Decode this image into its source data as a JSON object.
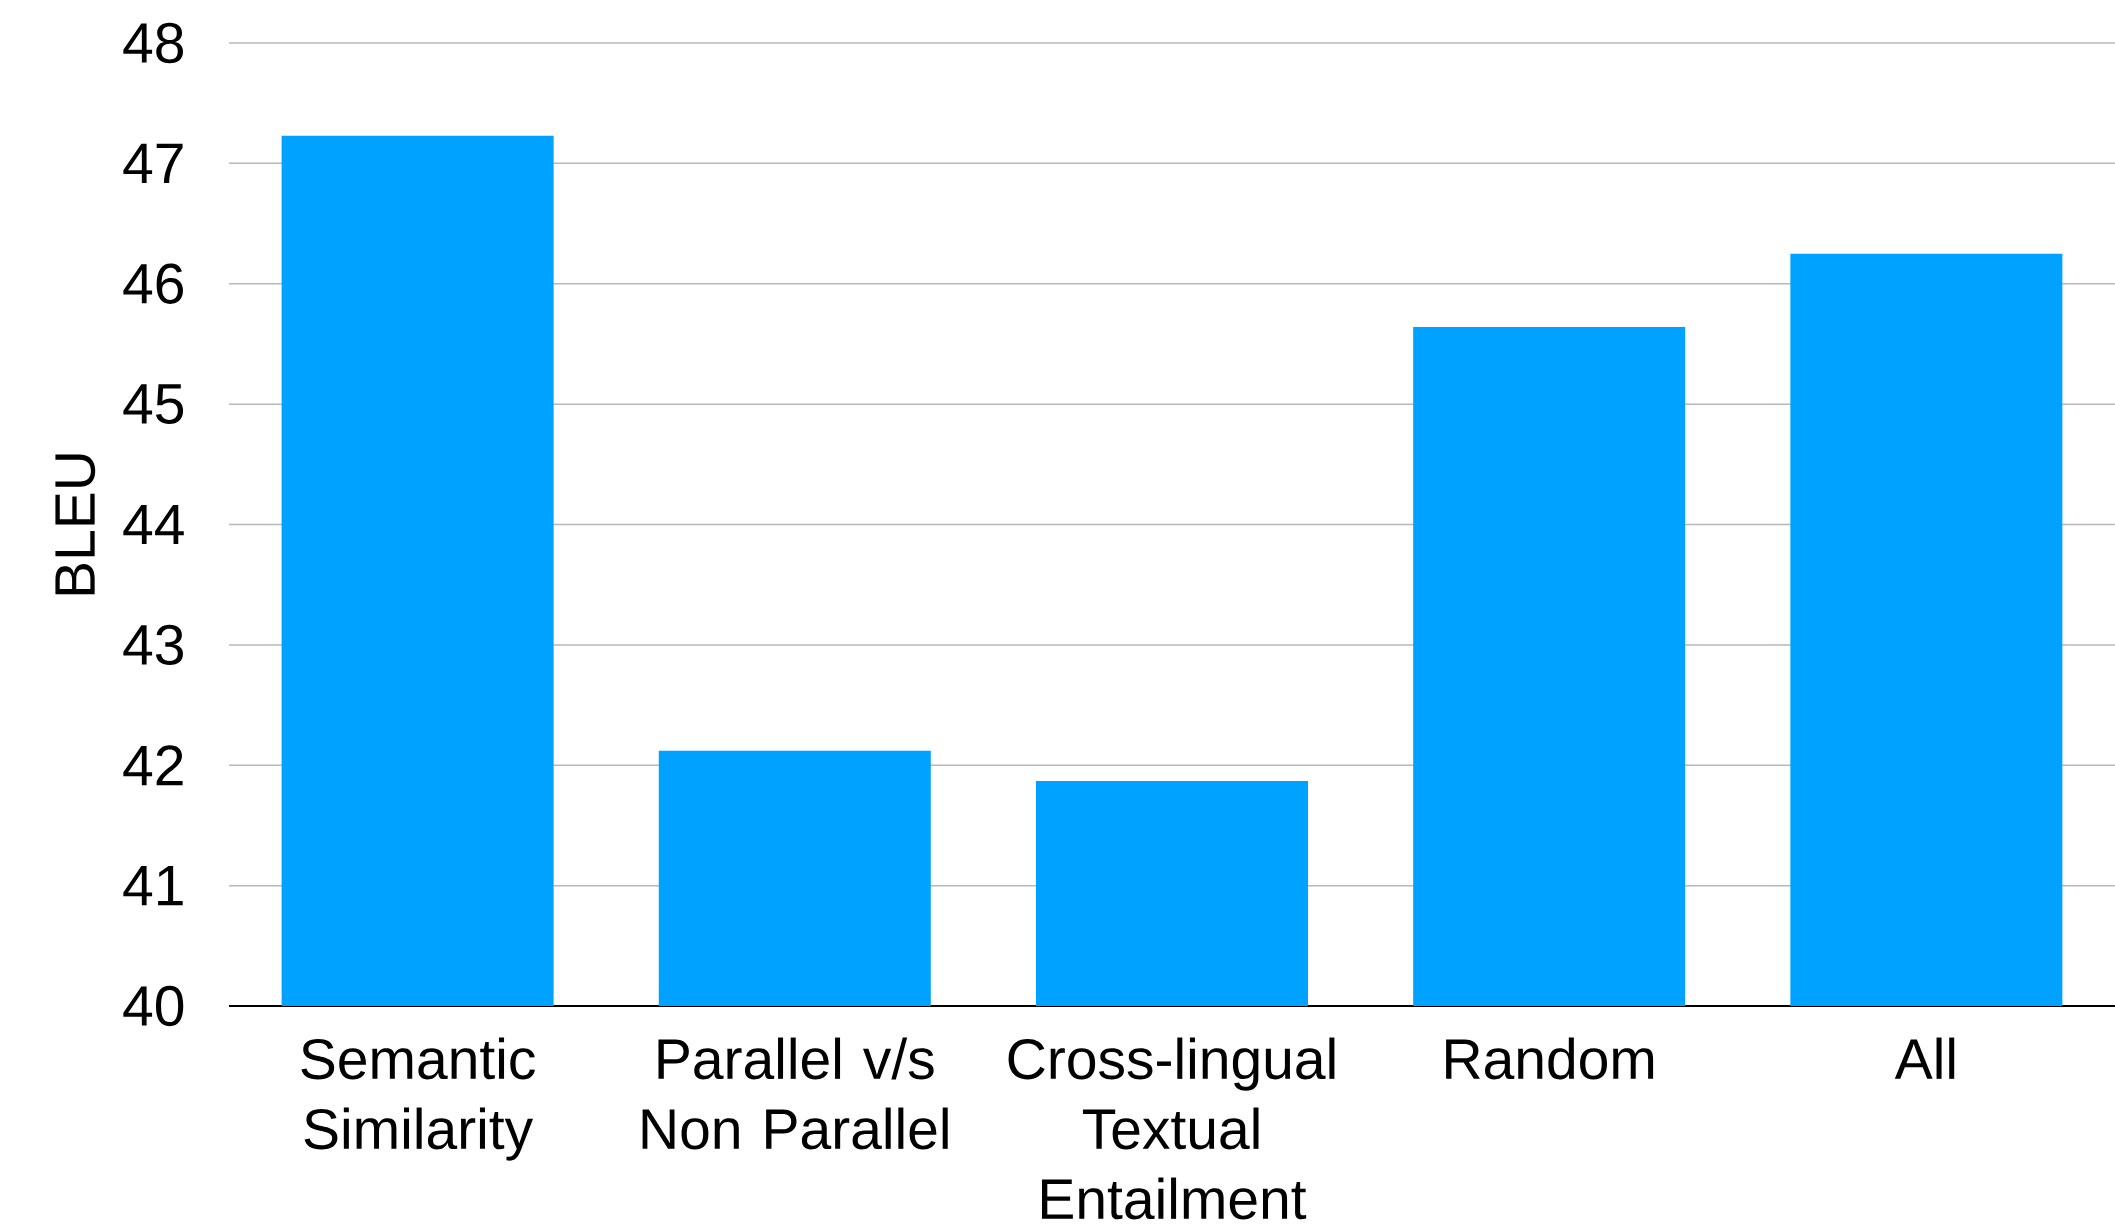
{
  "chart_data": {
    "type": "bar",
    "ylabel": "BLEU",
    "categories": [
      "Semantic Similarity",
      "Parallel v/s Non Parallel",
      "Cross-lingual Textual Entailment",
      "Random",
      "All"
    ],
    "values": [
      47.23,
      42.12,
      41.87,
      45.64,
      46.25
    ],
    "color": "#00a2ff",
    "ylim": [
      40,
      48
    ],
    "yticks": [
      40,
      41,
      42,
      43,
      44,
      45,
      46,
      47,
      48
    ],
    "grid": "y"
  }
}
